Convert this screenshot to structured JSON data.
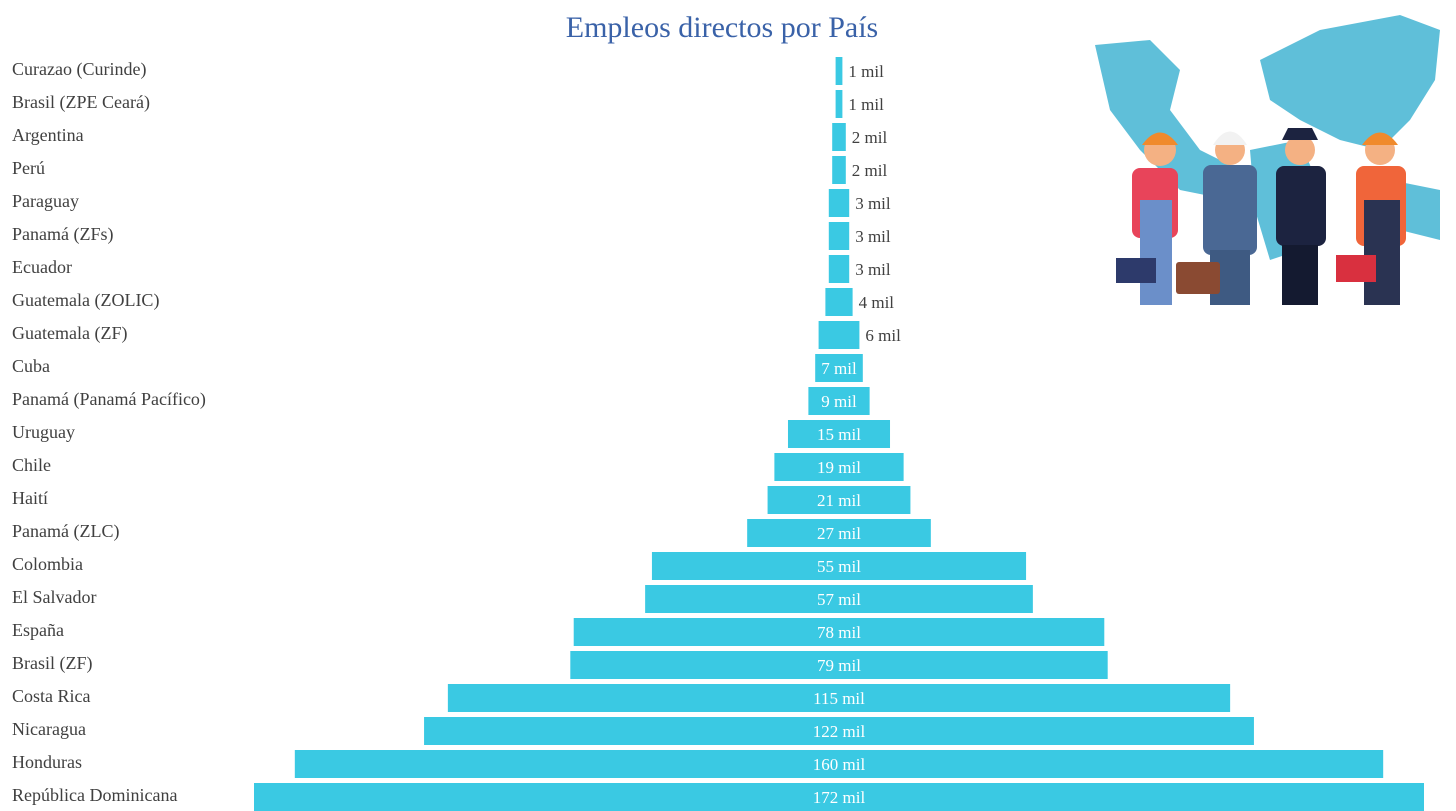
{
  "chart_data": {
    "type": "funnel",
    "title": "Empleos directos por País",
    "categories": [
      "Curazao (Curinde)",
      "Brasil (ZPE Ceará)",
      "Argentina",
      "Perú",
      "Paraguay",
      "Panamá (ZFs)",
      "Ecuador",
      "Guatemala (ZOLIC)",
      "Guatemala (ZF)",
      "Cuba",
      "Panamá (Panamá Pacífico)",
      "Uruguay",
      "Chile",
      "Haití",
      "Panamá (ZLC)",
      "Colombia",
      "El Salvador",
      "España",
      "Brasil (ZF)",
      "Costa Rica",
      "Nicaragua",
      "Honduras",
      "República Dominicana"
    ],
    "values": [
      1,
      1,
      2,
      2,
      3,
      3,
      3,
      4,
      6,
      7,
      9,
      15,
      19,
      21,
      27,
      55,
      57,
      78,
      79,
      115,
      122,
      160,
      172
    ],
    "value_labels": [
      "1 mil",
      "1 mil",
      "2 mil",
      "2 mil",
      "3 mil",
      "3 mil",
      "3 mil",
      "4 mil",
      "6 mil",
      "7 mil",
      "9 mil",
      "15 mil",
      "19 mil",
      "21 mil",
      "27 mil",
      "55 mil",
      "57 mil",
      "78 mil",
      "79 mil",
      "115 mil",
      "122 mil",
      "160 mil",
      "172 mil"
    ],
    "color": "#3ac9e3"
  }
}
